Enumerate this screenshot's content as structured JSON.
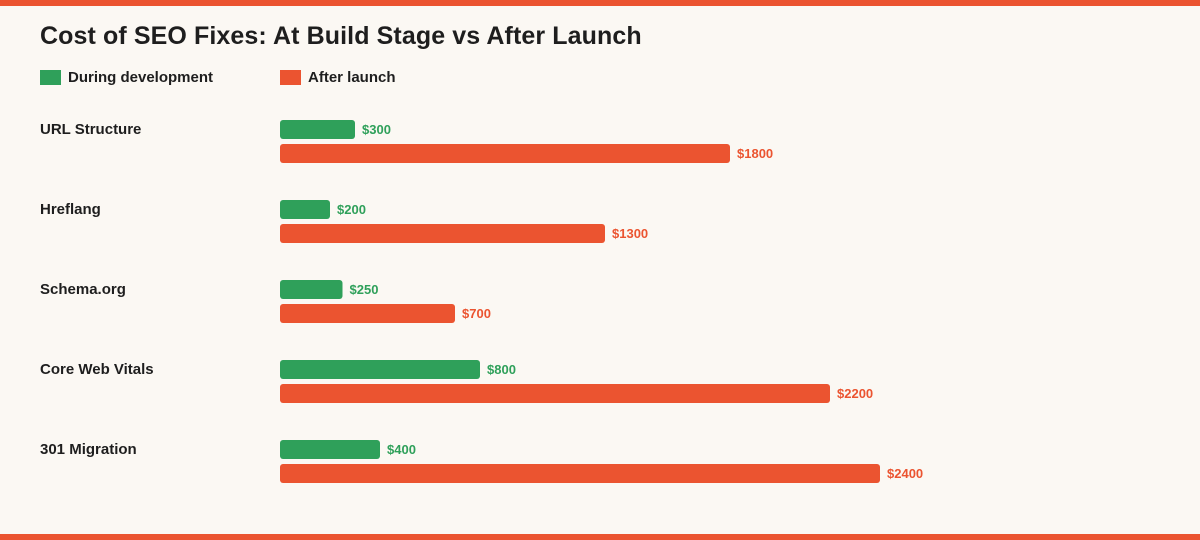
{
  "colors": {
    "during": "#2FA05A",
    "after": "#EB5430",
    "accent": "#EB5430",
    "background": "#FBF8F3",
    "text": "#1E1E1E"
  },
  "chart_data": {
    "type": "bar",
    "orientation": "horizontal",
    "title": "Cost of SEO Fixes: At Build Stage vs After Launch",
    "xlabel": "",
    "ylabel": "",
    "categories": [
      "URL Structure",
      "Hreflang",
      "Schema.org",
      "Core Web Vitals",
      "301 Migration"
    ],
    "series": [
      {
        "name": "During development",
        "color": "#2FA05A",
        "values": [
          300,
          200,
          250,
          800,
          400
        ],
        "labels": [
          "$300",
          "$200",
          "$250",
          "$800",
          "$400"
        ]
      },
      {
        "name": "After launch",
        "color": "#EB5430",
        "values": [
          1800,
          1300,
          700,
          2200,
          2400
        ],
        "labels": [
          "$1800",
          "$1300",
          "$700",
          "$2200",
          "$2400"
        ]
      }
    ],
    "xlim": [
      0,
      2400
    ],
    "grid": false,
    "legend": "top-left"
  }
}
